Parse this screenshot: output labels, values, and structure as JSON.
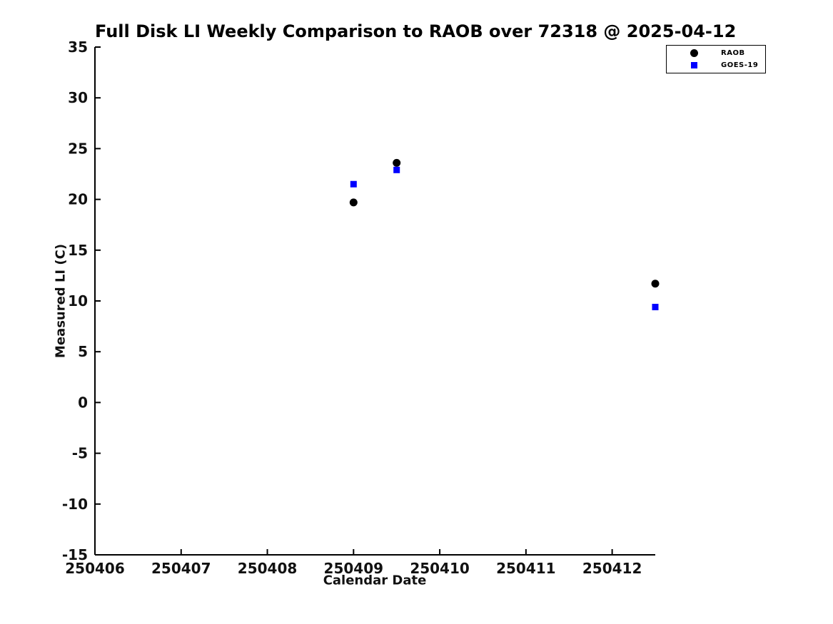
{
  "chart_data": {
    "type": "scatter",
    "title": "Full Disk LI Weekly Comparison to RAOB over 72318 @ 2025-04-12",
    "xlabel": "Calendar Date",
    "ylabel": "Measured LI (C)",
    "xlim": [
      250406,
      250412.5
    ],
    "ylim": [
      -15,
      35
    ],
    "xticks": [
      250406,
      250407,
      250408,
      250409,
      250410,
      250411,
      250412
    ],
    "yticks": [
      -15,
      -10,
      -5,
      0,
      5,
      10,
      15,
      20,
      25,
      30,
      35
    ],
    "grid": false,
    "axis_color": "#000000",
    "tick_label_color": "#111111",
    "legend_position": "upper-right-outside-plot",
    "series": [
      {
        "name": "RAOB",
        "marker": "circle",
        "color": "#000000",
        "points": [
          [
            250409.0,
            19.7
          ],
          [
            250409.5,
            23.6
          ],
          [
            250412.5,
            11.7
          ]
        ]
      },
      {
        "name": "GOES-19",
        "marker": "square",
        "color": "#0000ff",
        "points": [
          [
            250409.0,
            21.5
          ],
          [
            250409.5,
            22.9
          ],
          [
            250412.5,
            9.4
          ]
        ]
      }
    ]
  }
}
